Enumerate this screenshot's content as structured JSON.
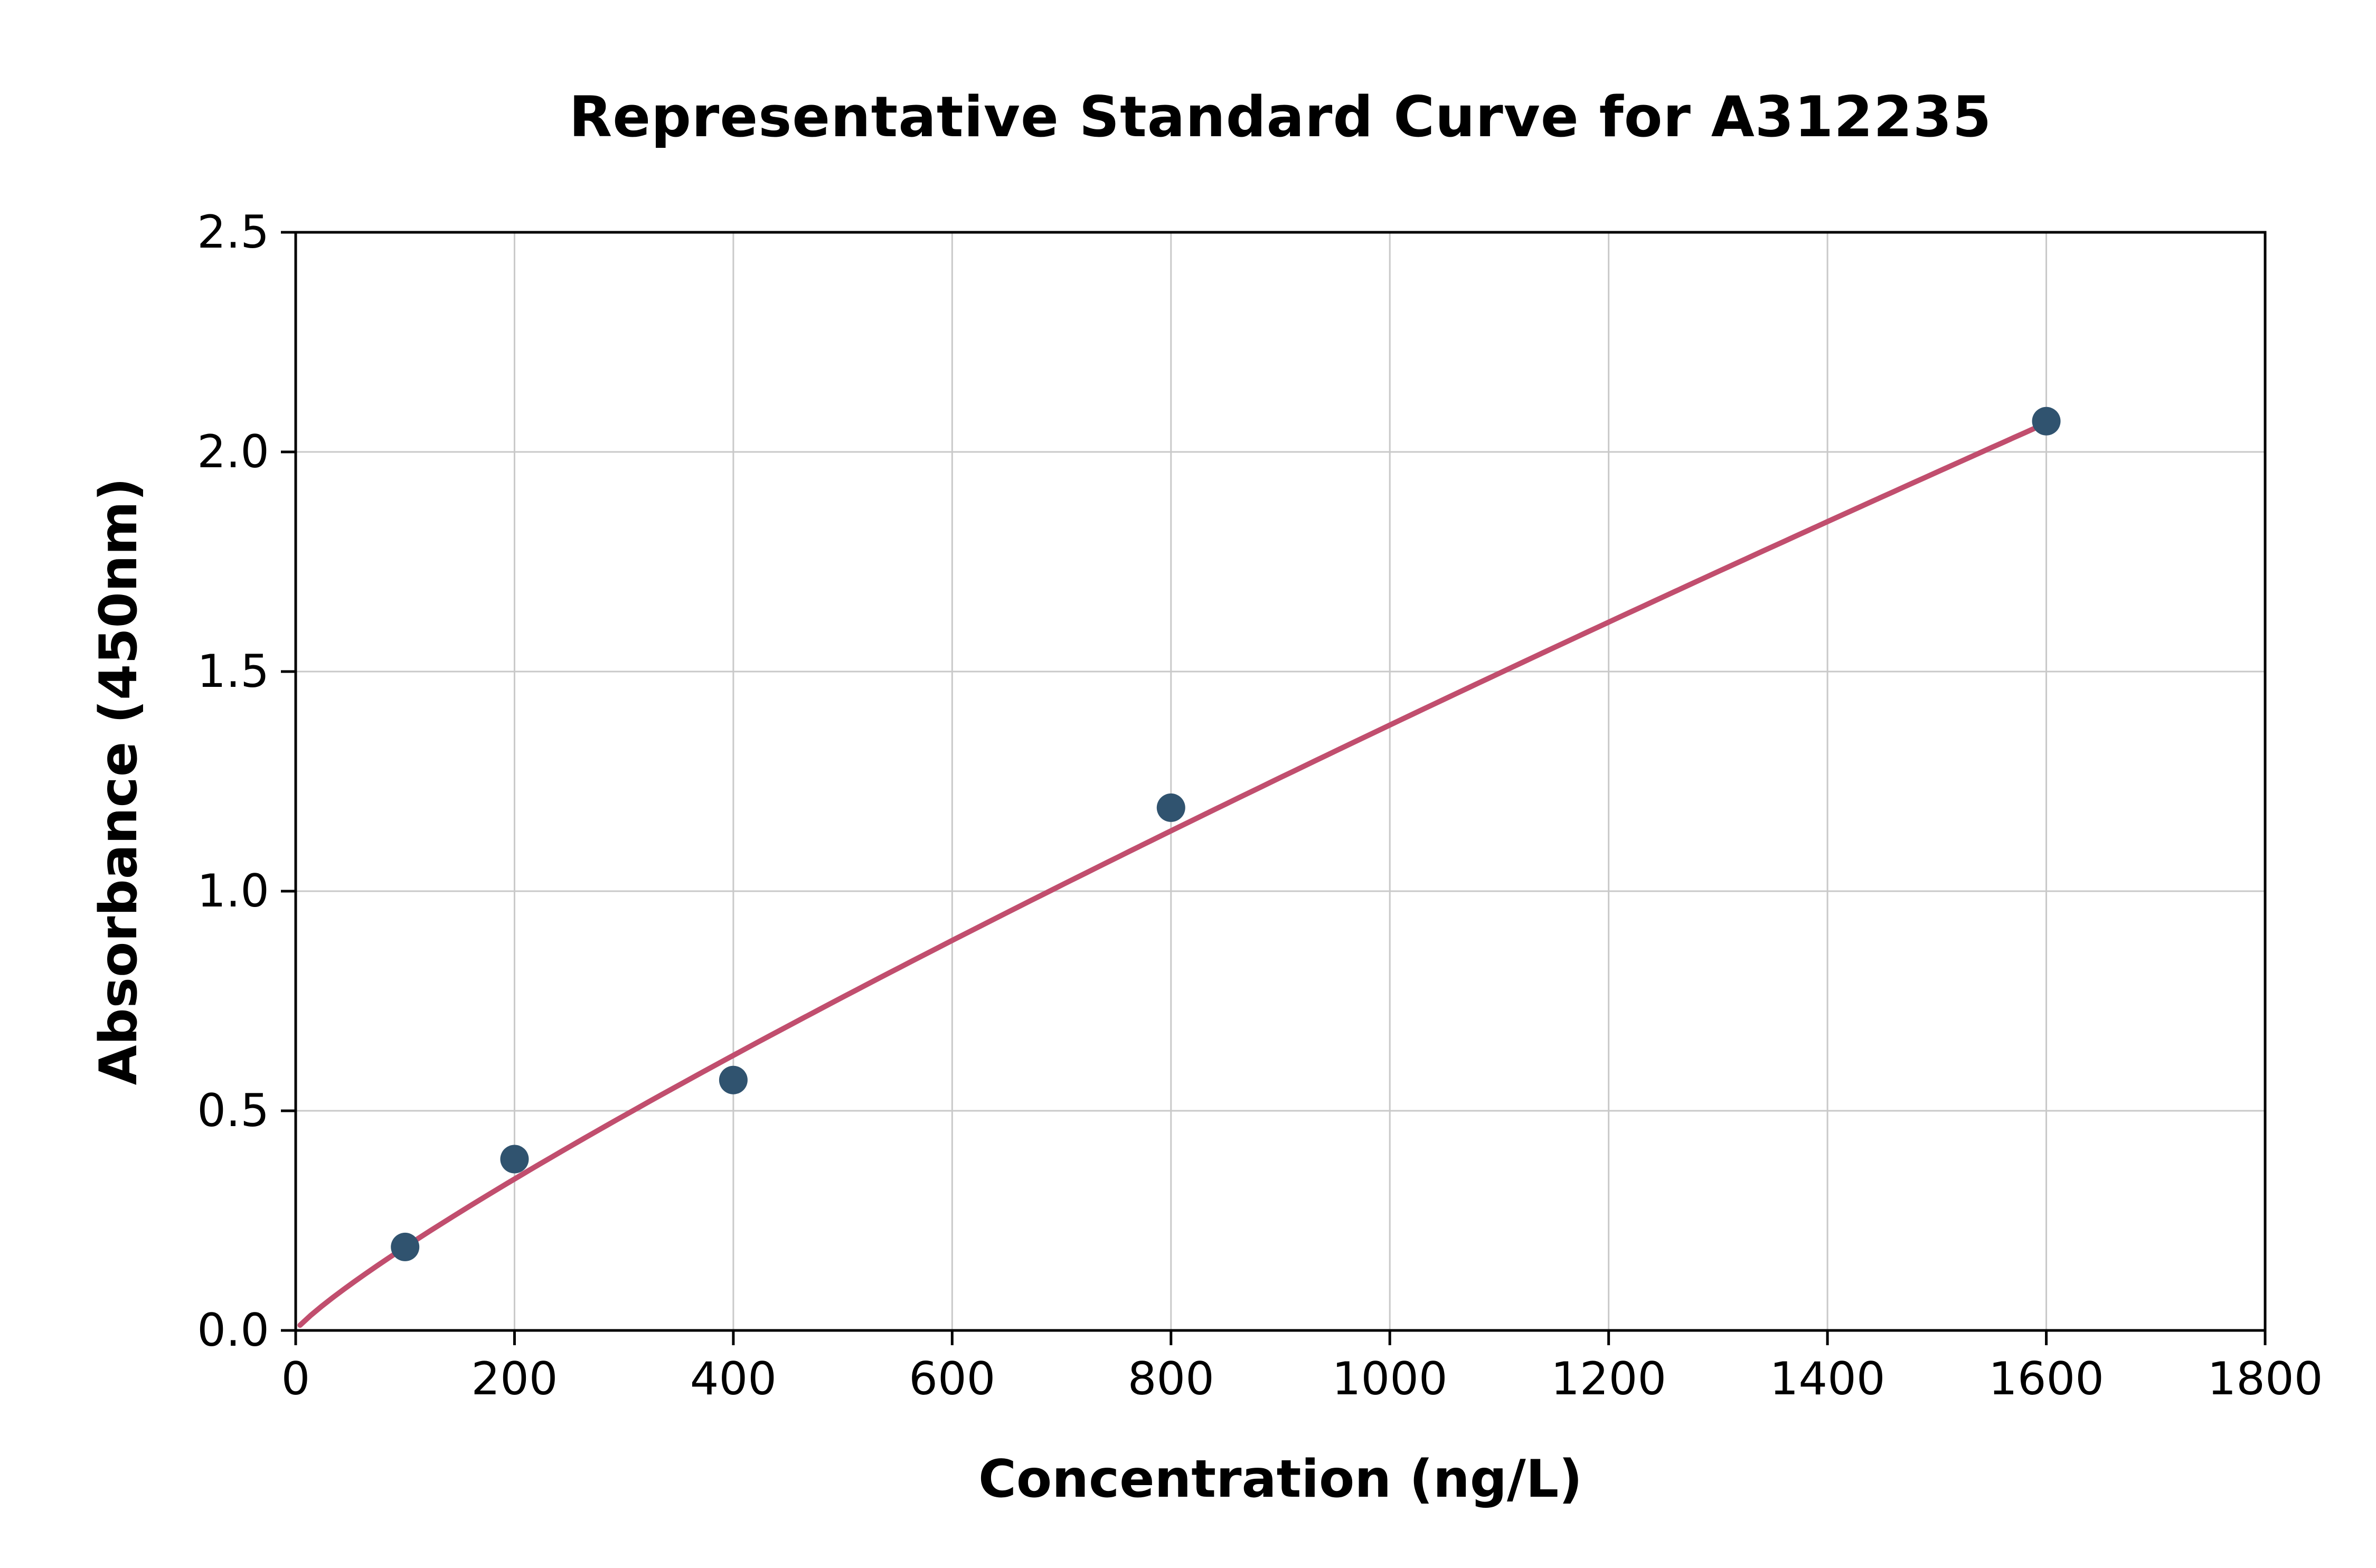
{
  "figure": {
    "kind": "standard-curve-plot"
  },
  "chart_data": {
    "type": "scatter",
    "title": "Representative Standard Curve for A312235",
    "xlabel": "Concentration (ng/L)",
    "ylabel": "Absorbance (450nm)",
    "xlim": [
      0,
      1800
    ],
    "ylim": [
      0,
      2.5
    ],
    "x_ticks": [
      0,
      200,
      400,
      600,
      800,
      1000,
      1200,
      1400,
      1600,
      1800
    ],
    "y_ticks": [
      0.0,
      0.5,
      1.0,
      1.5,
      2.0,
      2.5
    ],
    "grid": true,
    "legend": "none",
    "points": {
      "x": [
        100,
        200,
        400,
        800,
        1600
      ],
      "y": [
        0.19,
        0.39,
        0.57,
        1.19,
        2.07
      ]
    },
    "fit_curve": {
      "model": "power",
      "a": 0.0036,
      "b": 0.861,
      "x_start": 4,
      "x_end": 1600
    },
    "colors": {
      "curve": "#c14e6e",
      "marker": "#30536f",
      "grid": "#c9c9c9",
      "frame": "#000000",
      "background": "#ffffff"
    }
  }
}
